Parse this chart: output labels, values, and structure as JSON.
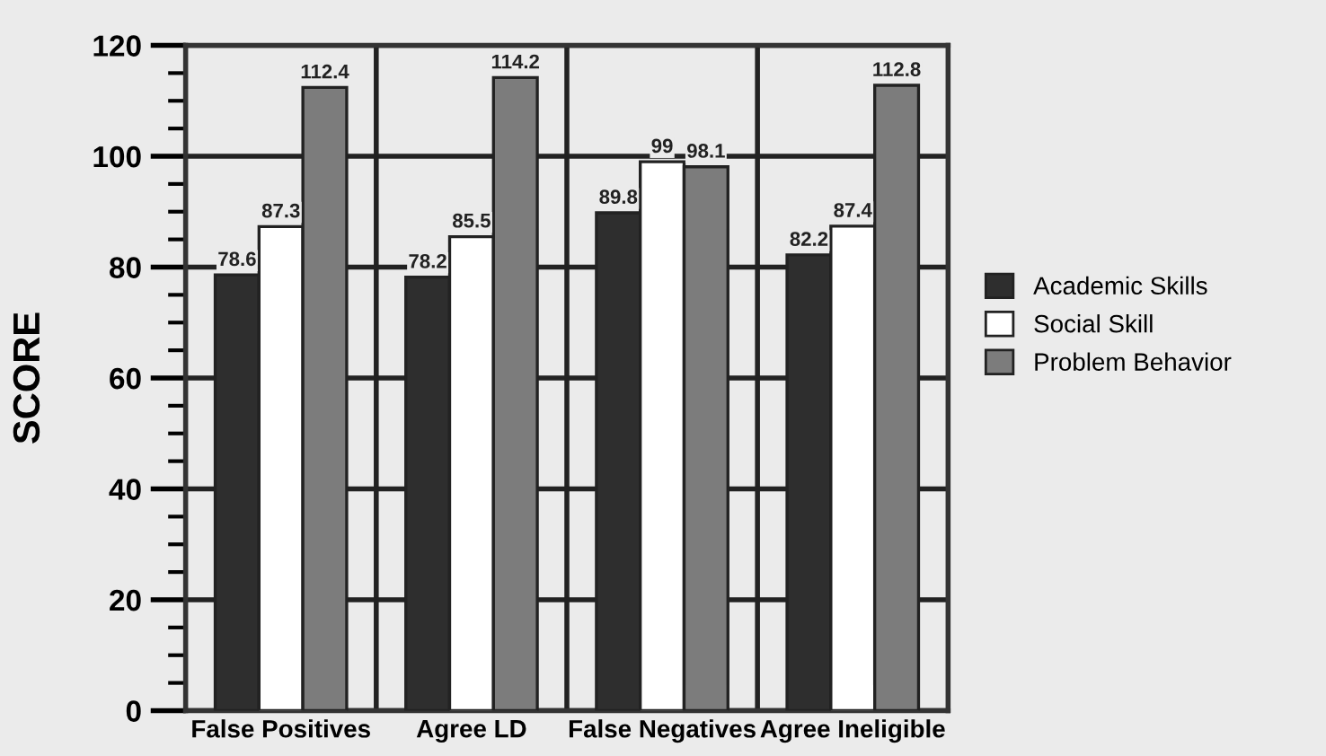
{
  "chart_data": {
    "type": "bar",
    "ylabel": "SCORE",
    "categories": [
      "False Positives",
      "Agree LD",
      "False Negatives",
      "Agree Ineligible"
    ],
    "series": [
      {
        "name": "Academic Skills",
        "color": "#2e2e2e",
        "values": [
          78.6,
          78.2,
          89.8,
          82.2
        ]
      },
      {
        "name": "Social Skill",
        "color": "#ffffff",
        "values": [
          87.3,
          85.5,
          99,
          87.4
        ]
      },
      {
        "name": "Problem Behavior",
        "color": "#7c7c7c",
        "values": [
          112.4,
          114.2,
          98.1,
          112.8
        ]
      }
    ],
    "ylim": [
      0,
      120
    ],
    "yticks": [
      0,
      20,
      40,
      60,
      80,
      100,
      120
    ],
    "grid": true,
    "legend": "right",
    "data_labels": true
  }
}
